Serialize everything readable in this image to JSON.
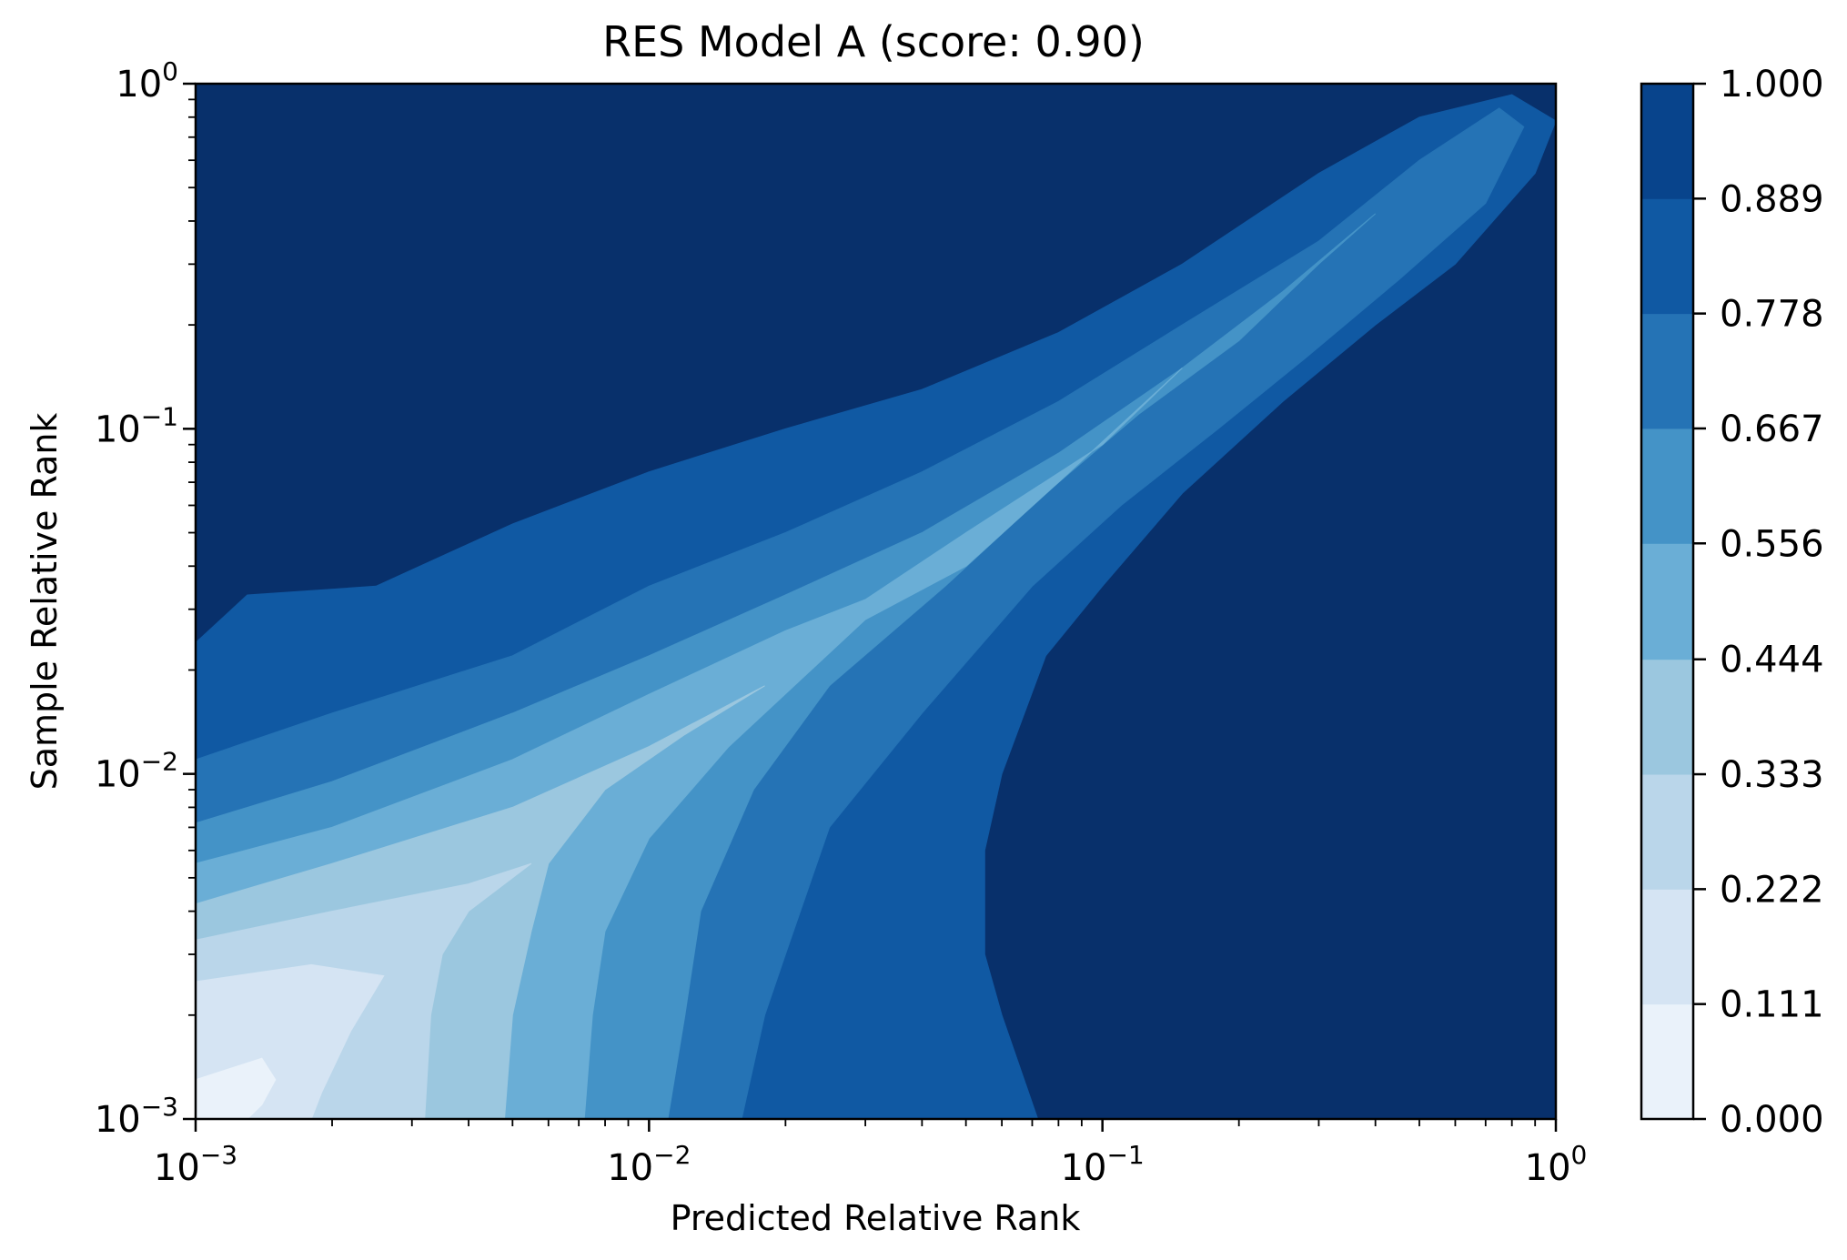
{
  "chart_data": {
    "type": "heatmap",
    "title": "RES Model A (score: 0.90)",
    "xlabel": "Predicted Relative Rank",
    "ylabel": "Sample Relative Rank",
    "xscale": "log",
    "yscale": "log",
    "xlim": [
      0.001,
      1
    ],
    "ylim": [
      0.001,
      1
    ],
    "x_ticks": [
      {
        "base": "10",
        "exp": "−3"
      },
      {
        "base": "10",
        "exp": "−2"
      },
      {
        "base": "10",
        "exp": "−1"
      },
      {
        "base": "10",
        "exp": "0"
      }
    ],
    "y_ticks": [
      {
        "base": "10",
        "exp": "−3"
      },
      {
        "base": "10",
        "exp": "−2"
      },
      {
        "base": "10",
        "exp": "−1"
      },
      {
        "base": "10",
        "exp": "0"
      }
    ],
    "colorbar": {
      "levels": [
        0.0,
        0.111,
        0.222,
        0.333,
        0.444,
        0.556,
        0.667,
        0.778,
        0.889,
        1.0
      ],
      "labels": [
        "0.000",
        "0.111",
        "0.222",
        "0.333",
        "0.444",
        "0.556",
        "0.667",
        "0.778",
        "0.889",
        "1.000"
      ],
      "colors": [
        "#eaf2fa",
        "#d5e4f3",
        "#bad6ea",
        "#9bc7df",
        "#6aaed6",
        "#4493c7",
        "#2573b5",
        "#1059a3",
        "#08448c",
        "#08306b"
      ]
    },
    "contour_boundaries": [
      {
        "level": 0.889,
        "points": [
          [
            0.001,
            0.024
          ],
          [
            0.0013,
            0.033
          ],
          [
            0.0025,
            0.035
          ],
          [
            0.005,
            0.053
          ],
          [
            0.01,
            0.075
          ],
          [
            0.02,
            0.1
          ],
          [
            0.04,
            0.13
          ],
          [
            0.08,
            0.19
          ],
          [
            0.15,
            0.3
          ],
          [
            0.3,
            0.55
          ],
          [
            0.5,
            0.8
          ],
          [
            0.8,
            0.93
          ],
          [
            1,
            0.78
          ],
          [
            0.9,
            0.55
          ],
          [
            0.6,
            0.3
          ],
          [
            0.4,
            0.2
          ],
          [
            0.25,
            0.12
          ],
          [
            0.15,
            0.065
          ],
          [
            0.1,
            0.035
          ],
          [
            0.075,
            0.022
          ],
          [
            0.06,
            0.01
          ],
          [
            0.055,
            0.006
          ],
          [
            0.055,
            0.003
          ],
          [
            0.06,
            0.002
          ],
          [
            0.072,
            0.001
          ]
        ]
      },
      {
        "level": 0.778,
        "points": [
          [
            0.001,
            0.011
          ],
          [
            0.002,
            0.015
          ],
          [
            0.005,
            0.022
          ],
          [
            0.01,
            0.035
          ],
          [
            0.02,
            0.05
          ],
          [
            0.04,
            0.075
          ],
          [
            0.08,
            0.12
          ],
          [
            0.15,
            0.2
          ],
          [
            0.3,
            0.35
          ],
          [
            0.5,
            0.6
          ],
          [
            0.75,
            0.85
          ],
          [
            0.85,
            0.75
          ],
          [
            0.7,
            0.45
          ],
          [
            0.45,
            0.27
          ],
          [
            0.28,
            0.16
          ],
          [
            0.18,
            0.1
          ],
          [
            0.11,
            0.06
          ],
          [
            0.07,
            0.035
          ],
          [
            0.04,
            0.015
          ],
          [
            0.025,
            0.007
          ],
          [
            0.02,
            0.003
          ],
          [
            0.018,
            0.002
          ],
          [
            0.016,
            0.001
          ]
        ]
      },
      {
        "level": 0.667,
        "points": [
          [
            0.001,
            0.0072
          ],
          [
            0.002,
            0.0095
          ],
          [
            0.005,
            0.015
          ],
          [
            0.01,
            0.022
          ],
          [
            0.02,
            0.033
          ],
          [
            0.04,
            0.05
          ],
          [
            0.08,
            0.085
          ],
          [
            0.15,
            0.15
          ],
          [
            0.25,
            0.25
          ],
          [
            0.4,
            0.42
          ],
          [
            0.3,
            0.3
          ],
          [
            0.2,
            0.18
          ],
          [
            0.12,
            0.11
          ],
          [
            0.075,
            0.065
          ],
          [
            0.045,
            0.035
          ],
          [
            0.025,
            0.018
          ],
          [
            0.017,
            0.009
          ],
          [
            0.013,
            0.004
          ],
          [
            0.012,
            0.002
          ],
          [
            0.011,
            0.001
          ]
        ]
      },
      {
        "level": 0.556,
        "points": [
          [
            0.001,
            0.0055
          ],
          [
            0.002,
            0.007
          ],
          [
            0.005,
            0.011
          ],
          [
            0.01,
            0.017
          ],
          [
            0.02,
            0.026
          ],
          [
            0.03,
            0.032
          ],
          [
            0.05,
            0.05
          ],
          [
            0.1,
            0.09
          ],
          [
            0.15,
            0.15
          ],
          [
            0.08,
            0.07
          ],
          [
            0.05,
            0.04
          ],
          [
            0.03,
            0.028
          ],
          [
            0.015,
            0.012
          ],
          [
            0.01,
            0.0065
          ],
          [
            0.008,
            0.0035
          ],
          [
            0.0075,
            0.002
          ],
          [
            0.0072,
            0.001
          ]
        ]
      },
      {
        "level": 0.444,
        "points": [
          [
            0.001,
            0.0042
          ],
          [
            0.002,
            0.0055
          ],
          [
            0.005,
            0.008
          ],
          [
            0.01,
            0.012
          ],
          [
            0.018,
            0.018
          ],
          [
            0.012,
            0.013
          ],
          [
            0.008,
            0.009
          ],
          [
            0.006,
            0.0055
          ],
          [
            0.0055,
            0.0035
          ],
          [
            0.005,
            0.002
          ],
          [
            0.0048,
            0.001
          ]
        ]
      },
      {
        "level": 0.333,
        "points": [
          [
            0.001,
            0.0033
          ],
          [
            0.002,
            0.004
          ],
          [
            0.004,
            0.0048
          ],
          [
            0.0055,
            0.0055
          ],
          [
            0.004,
            0.004
          ],
          [
            0.0035,
            0.003
          ],
          [
            0.0033,
            0.002
          ],
          [
            0.0032,
            0.001
          ]
        ]
      },
      {
        "level": 0.222,
        "points": [
          [
            0.001,
            0.0025
          ],
          [
            0.0018,
            0.0028
          ],
          [
            0.0026,
            0.0026
          ],
          [
            0.0022,
            0.0018
          ],
          [
            0.0019,
            0.0012
          ],
          [
            0.0018,
            0.001
          ]
        ]
      },
      {
        "level": 0.111,
        "points": [
          [
            0.001,
            0.0013
          ],
          [
            0.0014,
            0.0015
          ],
          [
            0.0015,
            0.0013
          ],
          [
            0.0014,
            0.0011
          ],
          [
            0.0013,
            0.001
          ]
        ]
      }
    ],
    "grid": false,
    "legend": "colorbar-right"
  }
}
